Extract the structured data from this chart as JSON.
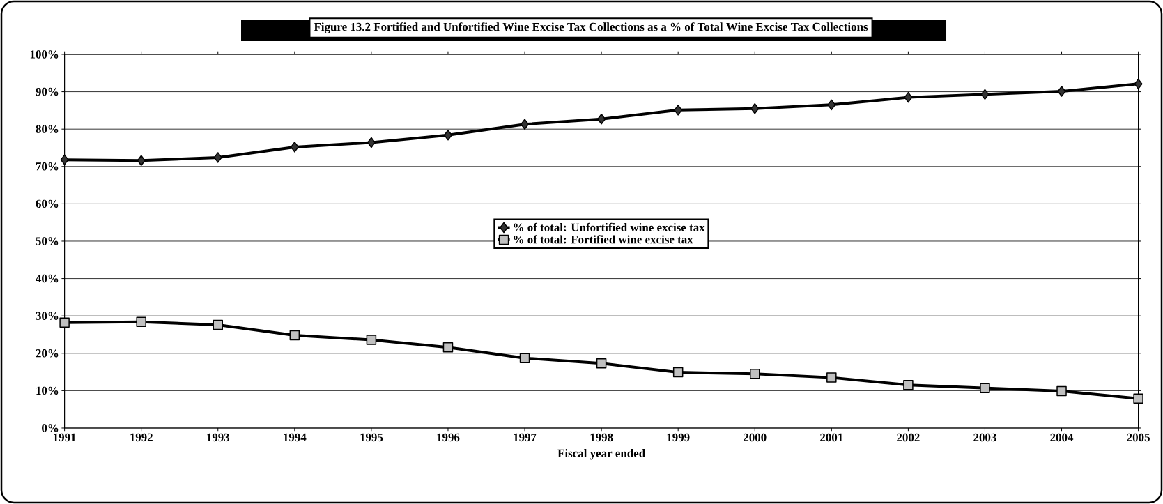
{
  "chart_data": {
    "type": "line",
    "title": "Figure 13.2  Fortified and Unfortified Wine Excise Tax Collections as a % of Total Wine Excise Tax Collections",
    "xlabel": "Fiscal year ended",
    "categories": [
      "1991",
      "1992",
      "1993",
      "1994",
      "1995",
      "1996",
      "1997",
      "1998",
      "1999",
      "2000",
      "2001",
      "2002",
      "2003",
      "2004",
      "2005"
    ],
    "series": [
      {
        "name": "% of total: Unfortified wine excise tax",
        "color": "#333333",
        "marker": "diamond",
        "values": [
          71.8,
          71.6,
          72.4,
          75.2,
          76.4,
          78.4,
          81.3,
          82.7,
          85.1,
          85.5,
          86.5,
          88.5,
          89.3,
          90.1,
          92.1
        ]
      },
      {
        "name": "% of total: Fortified wine excise tax",
        "color": "#c0c0c0",
        "marker": "square",
        "values": [
          28.2,
          28.4,
          27.6,
          24.8,
          23.6,
          21.6,
          18.7,
          17.3,
          14.9,
          14.5,
          13.5,
          11.5,
          10.7,
          9.9,
          7.9
        ]
      }
    ],
    "ylim": [
      0,
      100
    ],
    "yticks": [
      {
        "value": 0,
        "label": "0%"
      },
      {
        "value": 10,
        "label": "10%"
      },
      {
        "value": 20,
        "label": "20%"
      },
      {
        "value": 30,
        "label": "30%"
      },
      {
        "value": 40,
        "label": "40%"
      },
      {
        "value": 50,
        "label": "50%"
      },
      {
        "value": 60,
        "label": "60%"
      },
      {
        "value": 70,
        "label": "70%"
      },
      {
        "value": 80,
        "label": "80%"
      },
      {
        "value": 90,
        "label": "90%"
      },
      {
        "value": 100,
        "label": "100%"
      }
    ],
    "grid": "y",
    "legend": "center"
  }
}
